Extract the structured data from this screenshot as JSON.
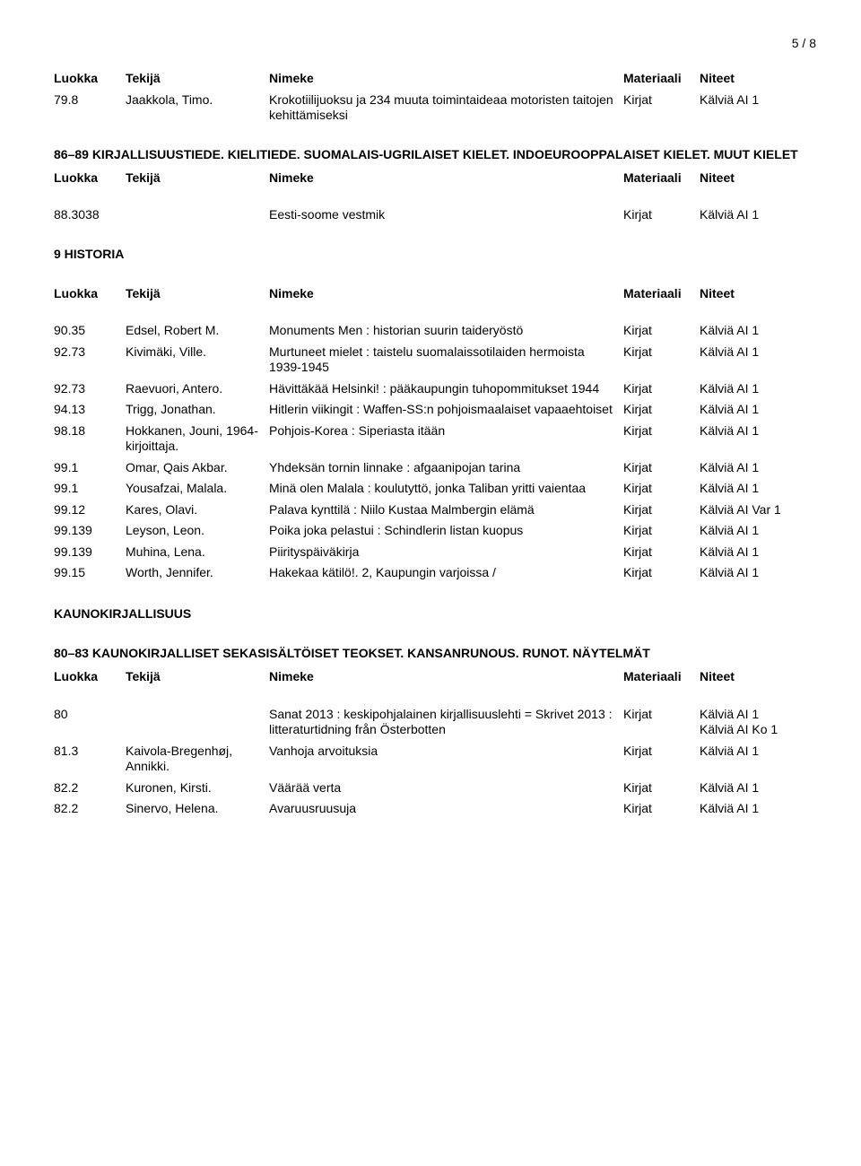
{
  "pageNumber": "5 / 8",
  "headers": {
    "luokka": "Luokka",
    "tekija": "Tekijä",
    "nimeke": "Nimeke",
    "materiaali": "Materiaali",
    "niteet": "Niteet"
  },
  "top_row": {
    "luokka": "79.8",
    "tekija": "Jaakkola, Timo.",
    "nimeke": "Krokotiilijuoksu ja 234 muuta toimintaideaa motoristen taitojen kehittämiseksi",
    "materiaali": "Kirjat",
    "niteet": "Kälviä AI 1"
  },
  "section_lang": {
    "title": "86–89 KIRJALLISUUSTIEDE. KIELITIEDE. SUOMALAIS-UGRILAISET KIELET. INDOEUROOPPALAISET KIELET. MUUT KIELET",
    "rows": [
      {
        "luokka": "88.3038",
        "tekija": "",
        "nimeke": "Eesti-soome vestmik",
        "materiaali": "Kirjat",
        "niteet": "Kälviä AI 1"
      }
    ]
  },
  "section_history": {
    "title": "9 HISTORIA",
    "rows": [
      {
        "luokka": "90.35",
        "tekija": "Edsel, Robert M.",
        "nimeke": "Monuments Men : historian suurin taideryöstö",
        "materiaali": "Kirjat",
        "niteet": "Kälviä AI 1"
      },
      {
        "luokka": "92.73",
        "tekija": "Kivimäki, Ville.",
        "nimeke": "Murtuneet mielet : taistelu suomalaissotilaiden hermoista 1939-1945",
        "materiaali": "Kirjat",
        "niteet": "Kälviä AI 1"
      },
      {
        "luokka": "92.73",
        "tekija": "Raevuori, Antero.",
        "nimeke": "Hävittäkää Helsinki! : pääkaupungin tuhopommitukset 1944",
        "materiaali": "Kirjat",
        "niteet": "Kälviä AI 1"
      },
      {
        "luokka": "94.13",
        "tekija": "Trigg, Jonathan.",
        "nimeke": "Hitlerin viikingit : Waffen-SS:n pohjoismaalaiset vapaaehtoiset",
        "materiaali": "Kirjat",
        "niteet": "Kälviä AI 1"
      },
      {
        "luokka": "98.18",
        "tekija": "Hokkanen, Jouni, 1964- kirjoittaja.",
        "nimeke": "Pohjois-Korea : Siperiasta itään",
        "materiaali": "Kirjat",
        "niteet": "Kälviä AI 1"
      },
      {
        "luokka": "99.1",
        "tekija": "Omar, Qais Akbar.",
        "nimeke": "Yhdeksän tornin linnake : afgaanipojan tarina",
        "materiaali": "Kirjat",
        "niteet": "Kälviä AI 1"
      },
      {
        "luokka": "99.1",
        "tekija": "Yousafzai, Malala.",
        "nimeke": "Minä olen Malala : koulutyttö, jonka Taliban yritti vaientaa",
        "materiaali": "Kirjat",
        "niteet": "Kälviä AI 1"
      },
      {
        "luokka": "99.12",
        "tekija": "Kares, Olavi.",
        "nimeke": "Palava kynttilä : Niilo Kustaa Malmbergin elämä",
        "materiaali": "Kirjat",
        "niteet": "Kälviä AI Var 1"
      },
      {
        "luokka": "99.139",
        "tekija": "Leyson, Leon.",
        "nimeke": "Poika joka pelastui : Schindlerin listan kuopus",
        "materiaali": "Kirjat",
        "niteet": "Kälviä AI 1"
      },
      {
        "luokka": "99.139",
        "tekija": "Muhina, Lena.",
        "nimeke": "Piirityspäiväkirja",
        "materiaali": "Kirjat",
        "niteet": "Kälviä AI 1"
      },
      {
        "luokka": "99.15",
        "tekija": "Worth, Jennifer.",
        "nimeke": "Hakekaa kätilö!. 2, Kaupungin varjoissa /",
        "materiaali": "Kirjat",
        "niteet": "Kälviä AI 1"
      }
    ]
  },
  "section_fiction": {
    "title": "KAUNOKIRJALLISUUS"
  },
  "section_poetry": {
    "title": "80–83 KAUNOKIRJALLISET SEKASISÄLTÖISET TEOKSET. KANSANRUNOUS. RUNOT. NÄYTELMÄT",
    "rows": [
      {
        "luokka": "80",
        "tekija": "",
        "nimeke": "Sanat 2013 : keskipohjalainen kirjallisuuslehti = Skrivet 2013 : litteraturtidning från Österbotten",
        "materiaali": "Kirjat",
        "niteet": "Kälviä AI 1",
        "niteet2": "Kälviä AI Ko 1"
      },
      {
        "luokka": "81.3",
        "tekija": "Kaivola-Bregenhøj, Annikki.",
        "nimeke": "Vanhoja arvoituksia",
        "materiaali": "Kirjat",
        "niteet": "Kälviä AI 1"
      },
      {
        "luokka": "82.2",
        "tekija": "Kuronen, Kirsti.",
        "nimeke": "Väärää verta",
        "materiaali": "Kirjat",
        "niteet": "Kälviä AI 1"
      },
      {
        "luokka": "82.2",
        "tekija": "Sinervo, Helena.",
        "nimeke": "Avaruusruusuja",
        "materiaali": "Kirjat",
        "niteet": "Kälviä AI 1"
      }
    ]
  }
}
